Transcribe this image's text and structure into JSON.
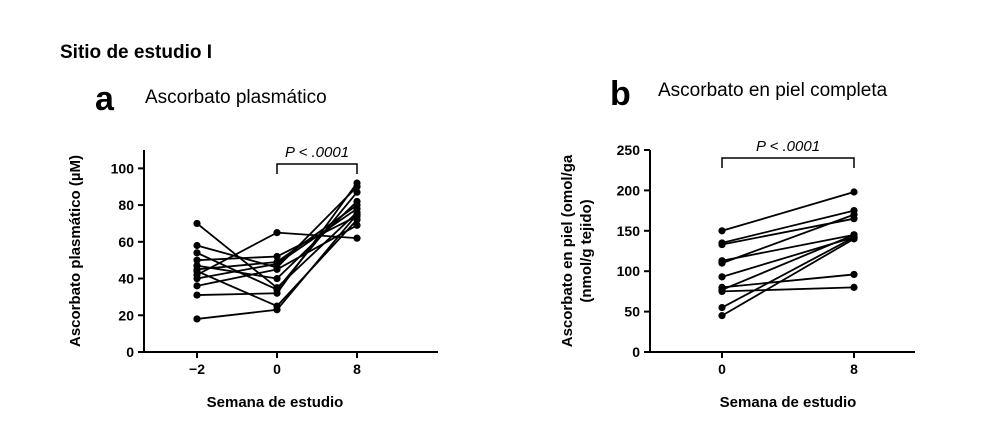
{
  "site_title": "Sitio de estudio I",
  "chart_data": [
    {
      "panel": "a",
      "title": "Ascorbato plasmático",
      "type": "line",
      "xlabel": "Semana de estudio",
      "ylabel": "Ascorbato plasmático (µM)",
      "categories": [
        "−2",
        "0",
        "8"
      ],
      "ylim": [
        0,
        110
      ],
      "yticks": [
        0,
        20,
        40,
        60,
        80,
        100
      ],
      "annotation": "P < .0001",
      "annotation_span": [
        "0",
        "8"
      ],
      "series": [
        {
          "values": [
            70,
            35,
            76
          ]
        },
        {
          "values": [
            58,
            46,
            90
          ]
        },
        {
          "values": [
            54,
            34,
            87
          ]
        },
        {
          "values": [
            50,
            52,
            74
          ]
        },
        {
          "values": [
            47,
            40,
            82
          ]
        },
        {
          "values": [
            45,
            49,
            80
          ]
        },
        {
          "values": [
            44,
            25,
            72
          ]
        },
        {
          "values": [
            42,
            65,
            62
          ]
        },
        {
          "values": [
            40,
            48,
            78
          ]
        },
        {
          "values": [
            36,
            45,
            69
          ]
        },
        {
          "values": [
            31,
            32,
            92
          ]
        },
        {
          "values": [
            18,
            23,
            75
          ]
        }
      ]
    },
    {
      "panel": "b",
      "title": "Ascorbato en piel completa",
      "type": "line",
      "xlabel": "Semana de estudio",
      "ylabel": "Ascorbato en piel (omol/ga (nmol/g tejido)",
      "ylabel_lines": [
        "Ascorbato en piel (omol/ga",
        "(nmol/g tejido)"
      ],
      "categories": [
        "0",
        "8"
      ],
      "ylim": [
        0,
        250
      ],
      "yticks": [
        0,
        50,
        100,
        150,
        200,
        250
      ],
      "annotation": "P < .0001",
      "annotation_span": [
        "0",
        "8"
      ],
      "series": [
        {
          "values": [
            150,
            198
          ]
        },
        {
          "values": [
            135,
            175
          ]
        },
        {
          "values": [
            133,
            165
          ]
        },
        {
          "values": [
            113,
            145
          ]
        },
        {
          "values": [
            110,
            170
          ]
        },
        {
          "values": [
            93,
            142
          ]
        },
        {
          "values": [
            80,
            96
          ]
        },
        {
          "values": [
            77,
            145
          ]
        },
        {
          "values": [
            75,
            80
          ]
        },
        {
          "values": [
            55,
            142
          ]
        },
        {
          "values": [
            45,
            140
          ]
        }
      ]
    }
  ]
}
